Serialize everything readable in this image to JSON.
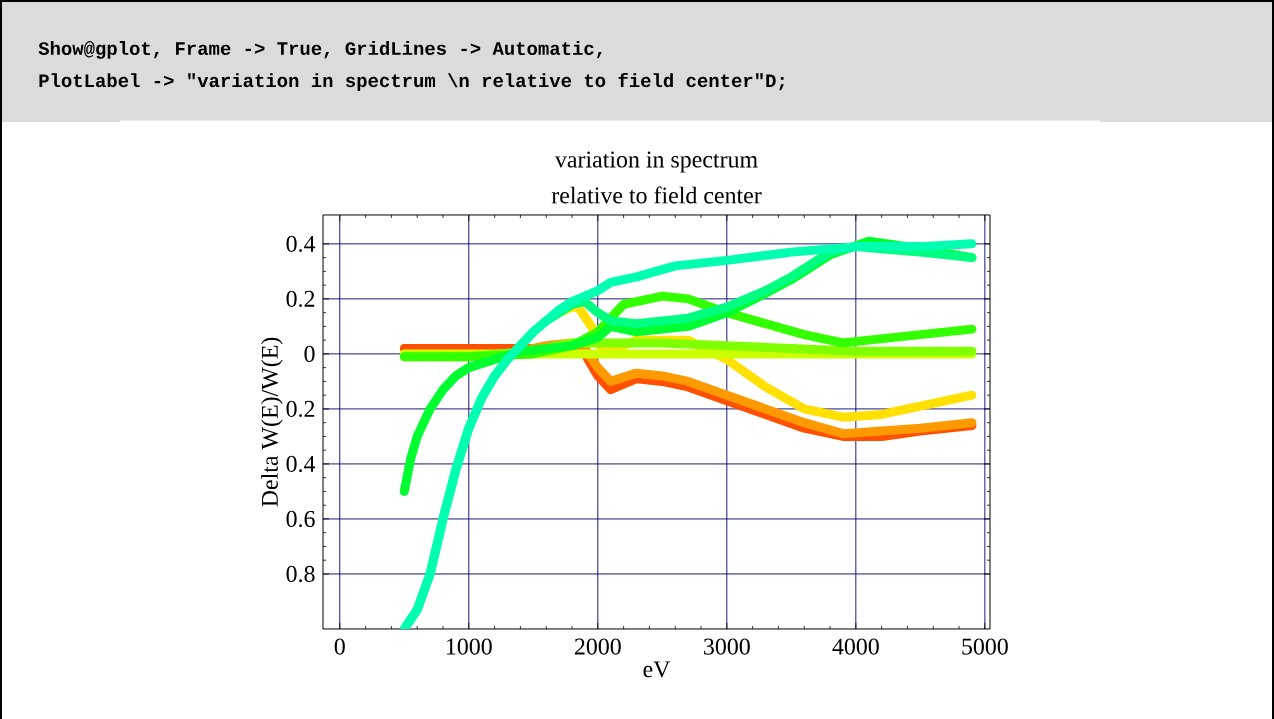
{
  "chart_data": {
    "type": "line",
    "title": "variation in spectrum\nrelative to field center",
    "xlabel": "eV",
    "ylabel": "Delta W(E)/W(E)",
    "annotations": [
      "Show@gplot, Frame -> True, GridLines -> Automatic,",
      "PlotLabel -> \"variation in spectrum \\n relative to field center\"D;"
    ],
    "xlim": [
      -130,
      5040
    ],
    "ylim": [
      -1.0,
      0.505
    ],
    "xticks": [
      0,
      1000,
      2000,
      3000,
      4000,
      5000
    ],
    "yticks": [
      {
        "value": -0.8,
        "label": "0.8"
      },
      {
        "value": -0.6,
        "label": "0.6"
      },
      {
        "value": -0.4,
        "label": "0.4"
      },
      {
        "value": -0.2,
        "label": "0.2"
      },
      0,
      0.2,
      0.4
    ],
    "grid": true,
    "marker": "none",
    "line_style": "solid",
    "series": [
      {
        "color": "#ff5000",
        "x": [
          500,
          1000,
          1500,
          1800,
          1900,
          2000,
          2100,
          2300,
          2500,
          2700,
          3000,
          3300,
          3600,
          3900,
          4200,
          4500,
          4900
        ],
        "values": [
          0.02,
          0.02,
          0.02,
          0.02,
          0.0,
          -0.08,
          -0.13,
          -0.09,
          -0.1,
          -0.12,
          -0.17,
          -0.22,
          -0.27,
          -0.3,
          -0.3,
          -0.28,
          -0.26
        ]
      },
      {
        "color": "#ff9900",
        "x": [
          1400,
          1600,
          1800,
          1900,
          2000,
          2100,
          2300,
          2500,
          2700,
          3000,
          3300,
          3600,
          3900,
          4200,
          4500,
          4900
        ],
        "values": [
          0.01,
          0.03,
          0.04,
          0.02,
          -0.05,
          -0.1,
          -0.07,
          -0.08,
          -0.1,
          -0.15,
          -0.2,
          -0.25,
          -0.29,
          -0.28,
          -0.27,
          -0.25
        ]
      },
      {
        "color": "#ffe000",
        "x": [
          1700,
          1800,
          1850,
          1950,
          2050,
          2300,
          2700,
          3000,
          3300,
          3600,
          3900,
          4200,
          4500,
          4900
        ],
        "values": [
          0.15,
          0.17,
          0.17,
          0.1,
          0.0,
          0.05,
          0.05,
          -0.02,
          -0.12,
          -0.2,
          -0.23,
          -0.22,
          -0.19,
          -0.15
        ]
      },
      {
        "color": "#ccff00",
        "x": [
          500,
          1000,
          1500,
          2000,
          2500,
          3000,
          3500,
          4000,
          4500,
          4900
        ],
        "values": [
          0.0,
          0.0,
          0.0,
          0.0,
          0.0,
          0.0,
          0.0,
          0.0,
          0.0,
          0.0
        ]
      },
      {
        "color": "#80ff00",
        "x": [
          500,
          1000,
          1500,
          1800,
          2000,
          2500,
          3000,
          3500,
          4000,
          4500,
          4900
        ],
        "values": [
          -0.01,
          -0.01,
          0.01,
          0.04,
          0.04,
          0.04,
          0.03,
          0.02,
          0.01,
          0.01,
          0.01
        ]
      },
      {
        "color": "#33ff00",
        "x": [
          500,
          1000,
          1500,
          1800,
          2000,
          2200,
          2500,
          2700,
          3000,
          3300,
          3600,
          3900,
          4100,
          4500,
          4900
        ],
        "values": [
          -0.01,
          -0.01,
          0.0,
          0.03,
          0.08,
          0.18,
          0.21,
          0.2,
          0.15,
          0.11,
          0.07,
          0.04,
          0.05,
          0.07,
          0.09
        ]
      },
      {
        "color": "#00ff30",
        "x": [
          500,
          550,
          600,
          700,
          800,
          900,
          1000,
          1200,
          1400,
          1600,
          1800,
          2000,
          2100,
          2300,
          2700,
          3000,
          3300,
          3500,
          3800,
          4100,
          4400,
          4900
        ],
        "values": [
          -0.5,
          -0.38,
          -0.3,
          -0.2,
          -0.13,
          -0.08,
          -0.05,
          -0.02,
          0.01,
          0.02,
          0.03,
          0.06,
          0.1,
          0.08,
          0.1,
          0.15,
          0.22,
          0.27,
          0.36,
          0.41,
          0.39,
          0.35
        ]
      },
      {
        "color": "#00ff80",
        "x": [
          500,
          600,
          700,
          800,
          900,
          1000,
          1100,
          1200,
          1300,
          1400,
          1500,
          1600,
          1700,
          1800,
          1900,
          2000,
          2100,
          2300,
          2700,
          3000,
          3300,
          3500,
          3800,
          4000,
          4500,
          4900
        ],
        "values": [
          -1.0,
          -0.93,
          -0.8,
          -0.6,
          -0.42,
          -0.27,
          -0.16,
          -0.08,
          -0.02,
          0.03,
          0.08,
          0.12,
          0.15,
          0.18,
          0.19,
          0.15,
          0.12,
          0.11,
          0.13,
          0.17,
          0.23,
          0.28,
          0.37,
          0.39,
          0.37,
          0.35
        ]
      },
      {
        "color": "#00ffb0",
        "x": [
          500,
          600,
          700,
          800,
          900,
          1000,
          1100,
          1200,
          1300,
          1400,
          1500,
          1600,
          1700,
          1800,
          1900,
          2000,
          2100,
          2300,
          2600,
          3000,
          3500,
          4000,
          4500,
          4900
        ],
        "values": [
          -1.0,
          -0.93,
          -0.8,
          -0.6,
          -0.42,
          -0.27,
          -0.16,
          -0.08,
          -0.02,
          0.03,
          0.08,
          0.12,
          0.16,
          0.19,
          0.21,
          0.23,
          0.26,
          0.28,
          0.32,
          0.34,
          0.37,
          0.39,
          0.39,
          0.4
        ]
      }
    ]
  }
}
